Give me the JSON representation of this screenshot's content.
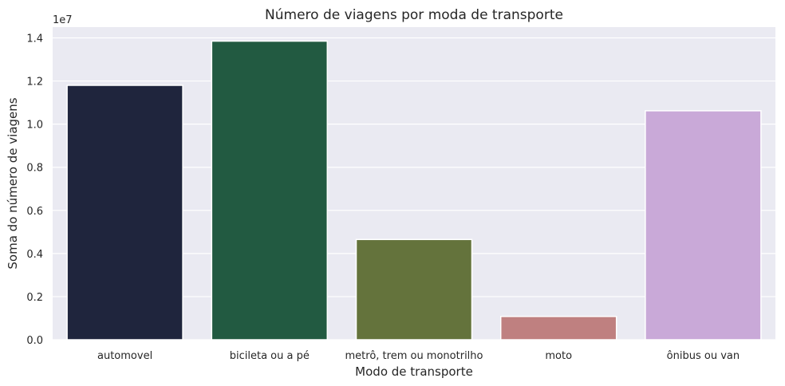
{
  "chart_data": {
    "type": "bar",
    "title": "Número de viagens por moda de transporte",
    "xlabel": "Modo de transporte",
    "ylabel": "Soma do número de viagens",
    "y_offset_label": "1e7",
    "categories": [
      "automovel",
      "bicileta ou a pé",
      "metrô, trem ou monotrilho",
      "moto",
      "ônibus ou van"
    ],
    "values": [
      11800000,
      13850000,
      4650000,
      1080000,
      10620000
    ],
    "colors": [
      "#1f253d",
      "#225a41",
      "#64733c",
      "#bf8080",
      "#c9a9d8"
    ],
    "ylim": [
      0,
      14500000
    ],
    "yticks": [
      0,
      2000000,
      4000000,
      6000000,
      8000000,
      10000000,
      12000000,
      14000000
    ],
    "ytick_labels": [
      "0.0",
      "0.2",
      "0.4",
      "0.6",
      "0.8",
      "1.0",
      "1.2",
      "1.4"
    ],
    "grid": true,
    "background": "#eaeaf2"
  }
}
